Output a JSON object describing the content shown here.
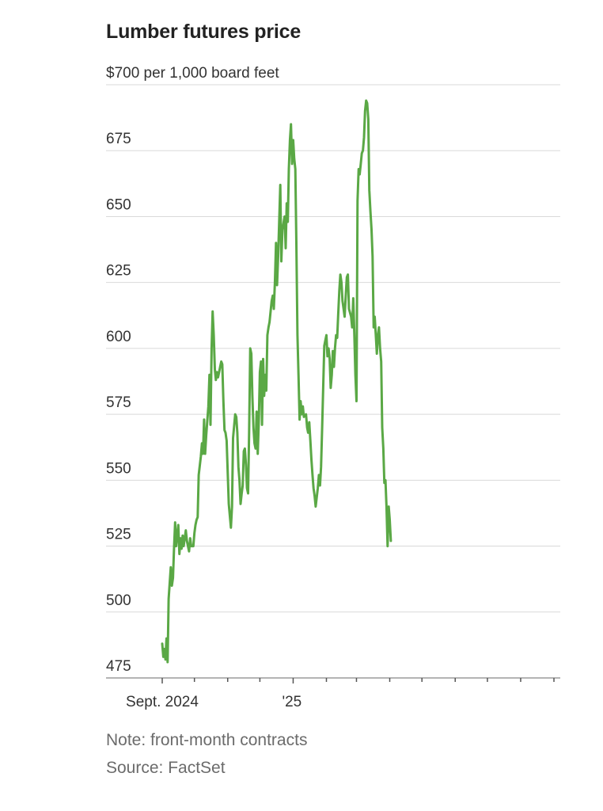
{
  "header": {
    "title": "Lumber futures price"
  },
  "footer": {
    "note": "Note: front-month contracts",
    "source": "Source: FactSet"
  },
  "colors": {
    "line": "#5aa845",
    "grid": "#d9d9d9",
    "axis": "#888888",
    "text": "#333333"
  },
  "chart_data": {
    "type": "line",
    "title": "Lumber futures price",
    "unit_label": "$700 per 1,000 board feet",
    "xlabel": "",
    "ylabel": "",
    "ylim": [
      475,
      700
    ],
    "xlim": [
      "2024-08-26",
      "2025-08-31"
    ],
    "grid": true,
    "y_ticks": [
      {
        "value": 700,
        "label": "$700 per 1,000 board feet"
      },
      {
        "value": 675,
        "label": "675"
      },
      {
        "value": 650,
        "label": "650"
      },
      {
        "value": 625,
        "label": "625"
      },
      {
        "value": 600,
        "label": "600"
      },
      {
        "value": 575,
        "label": "575"
      },
      {
        "value": 550,
        "label": "550"
      },
      {
        "value": 525,
        "label": "525"
      },
      {
        "value": 500,
        "label": "500"
      },
      {
        "value": 475,
        "label": "475"
      }
    ],
    "x_ticks": [
      {
        "x": "2024-09-01",
        "label": "Sept. 2024"
      },
      {
        "x": "2024-10-01",
        "label": ""
      },
      {
        "x": "2024-11-01",
        "label": ""
      },
      {
        "x": "2024-12-01",
        "label": ""
      },
      {
        "x": "2025-01-01",
        "label": "'25"
      },
      {
        "x": "2025-02-01",
        "label": ""
      },
      {
        "x": "2025-03-01",
        "label": ""
      },
      {
        "x": "2025-04-01",
        "label": ""
      },
      {
        "x": "2025-05-01",
        "label": ""
      },
      {
        "x": "2025-06-01",
        "label": ""
      },
      {
        "x": "2025-07-01",
        "label": ""
      },
      {
        "x": "2025-08-01",
        "label": ""
      },
      {
        "x": "2025-09-01",
        "label": ""
      }
    ],
    "series": [
      {
        "color": "#5aa845",
        "points": [
          [
            "2024-09-01",
            488
          ],
          [
            "2024-09-02",
            483
          ],
          [
            "2024-09-03",
            486
          ],
          [
            "2024-09-04",
            482
          ],
          [
            "2024-09-05",
            490
          ],
          [
            "2024-09-06",
            481
          ],
          [
            "2024-09-07",
            505
          ],
          [
            "2024-09-09",
            517
          ],
          [
            "2024-09-10",
            510
          ],
          [
            "2024-09-11",
            513
          ],
          [
            "2024-09-12",
            524
          ],
          [
            "2024-09-13",
            534
          ],
          [
            "2024-09-14",
            525
          ],
          [
            "2024-09-16",
            533
          ],
          [
            "2024-09-17",
            522
          ],
          [
            "2024-09-18",
            528
          ],
          [
            "2024-09-19",
            524
          ],
          [
            "2024-09-20",
            529
          ],
          [
            "2024-09-21",
            525
          ],
          [
            "2024-09-23",
            531
          ],
          [
            "2024-09-24",
            527
          ],
          [
            "2024-09-26",
            523
          ],
          [
            "2024-09-27",
            528
          ],
          [
            "2024-09-28",
            525
          ],
          [
            "2024-09-30",
            525
          ],
          [
            "2024-10-01",
            530
          ],
          [
            "2024-10-02",
            533
          ],
          [
            "2024-10-03",
            535
          ],
          [
            "2024-10-04",
            536
          ],
          [
            "2024-10-05",
            552
          ],
          [
            "2024-10-07",
            559
          ],
          [
            "2024-10-08",
            564
          ],
          [
            "2024-10-09",
            560
          ],
          [
            "2024-10-10",
            573
          ],
          [
            "2024-10-11",
            560
          ],
          [
            "2024-10-12",
            567
          ],
          [
            "2024-10-14",
            578
          ],
          [
            "2024-10-15",
            590
          ],
          [
            "2024-10-16",
            571
          ],
          [
            "2024-10-17",
            600
          ],
          [
            "2024-10-18",
            614
          ],
          [
            "2024-10-19",
            605
          ],
          [
            "2024-10-20",
            592
          ],
          [
            "2024-10-21",
            588
          ],
          [
            "2024-10-22",
            591
          ],
          [
            "2024-10-23",
            589
          ],
          [
            "2024-10-24",
            591
          ],
          [
            "2024-10-25",
            593
          ],
          [
            "2024-10-26",
            595
          ],
          [
            "2024-10-27",
            594
          ],
          [
            "2024-10-28",
            580
          ],
          [
            "2024-10-29",
            569
          ],
          [
            "2024-10-30",
            568
          ],
          [
            "2024-10-31",
            565
          ],
          [
            "2024-11-02",
            541
          ],
          [
            "2024-11-04",
            532
          ],
          [
            "2024-11-05",
            540
          ],
          [
            "2024-11-06",
            566
          ],
          [
            "2024-11-08",
            575
          ],
          [
            "2024-11-09",
            574
          ],
          [
            "2024-11-10",
            568
          ],
          [
            "2024-11-11",
            555
          ],
          [
            "2024-11-12",
            550
          ],
          [
            "2024-11-13",
            541
          ],
          [
            "2024-11-14",
            545
          ],
          [
            "2024-11-15",
            548
          ],
          [
            "2024-11-16",
            561
          ],
          [
            "2024-11-17",
            562
          ],
          [
            "2024-11-18",
            556
          ],
          [
            "2024-11-19",
            547
          ],
          [
            "2024-11-20",
            545
          ],
          [
            "2024-11-21",
            568
          ],
          [
            "2024-11-22",
            600
          ],
          [
            "2024-11-23",
            598
          ],
          [
            "2024-11-24",
            582
          ],
          [
            "2024-11-25",
            570
          ],
          [
            "2024-11-26",
            564
          ],
          [
            "2024-11-27",
            562
          ],
          [
            "2024-11-28",
            576
          ],
          [
            "2024-11-29",
            560
          ],
          [
            "2024-11-30",
            573
          ],
          [
            "2024-12-01",
            591
          ],
          [
            "2024-12-02",
            595
          ],
          [
            "2024-12-03",
            571
          ],
          [
            "2024-12-04",
            596
          ],
          [
            "2024-12-05",
            582
          ],
          [
            "2024-12-06",
            590
          ],
          [
            "2024-12-07",
            584
          ],
          [
            "2024-12-08",
            605
          ],
          [
            "2024-12-09",
            608
          ],
          [
            "2024-12-10",
            610
          ],
          [
            "2024-12-12",
            618
          ],
          [
            "2024-12-13",
            620
          ],
          [
            "2024-12-14",
            615
          ],
          [
            "2024-12-15",
            625
          ],
          [
            "2024-12-16",
            640
          ],
          [
            "2024-12-17",
            624
          ],
          [
            "2024-12-18",
            635
          ],
          [
            "2024-12-19",
            648
          ],
          [
            "2024-12-20",
            662
          ],
          [
            "2024-12-21",
            633
          ],
          [
            "2024-12-22",
            645
          ],
          [
            "2024-12-24",
            650
          ],
          [
            "2024-12-25",
            638
          ],
          [
            "2024-12-26",
            655
          ],
          [
            "2024-12-27",
            648
          ],
          [
            "2024-12-28",
            668
          ],
          [
            "2024-12-29",
            679
          ],
          [
            "2024-12-30",
            685
          ],
          [
            "2024-12-31",
            670
          ],
          [
            "2025-01-01",
            679
          ],
          [
            "2025-01-02",
            672
          ],
          [
            "2025-01-03",
            668
          ],
          [
            "2025-01-04",
            640
          ],
          [
            "2025-01-05",
            605
          ],
          [
            "2025-01-06",
            590
          ],
          [
            "2025-01-07",
            573
          ],
          [
            "2025-01-08",
            580
          ],
          [
            "2025-01-09",
            575
          ],
          [
            "2025-01-10",
            578
          ],
          [
            "2025-01-11",
            574
          ],
          [
            "2025-01-13",
            575
          ],
          [
            "2025-01-14",
            570
          ],
          [
            "2025-01-15",
            568
          ],
          [
            "2025-01-16",
            572
          ],
          [
            "2025-01-17",
            565
          ],
          [
            "2025-01-18",
            558
          ],
          [
            "2025-01-19",
            552
          ],
          [
            "2025-01-20",
            547
          ],
          [
            "2025-01-21",
            544
          ],
          [
            "2025-01-22",
            540
          ],
          [
            "2025-01-24",
            547
          ],
          [
            "2025-01-25",
            552
          ],
          [
            "2025-01-26",
            548
          ],
          [
            "2025-01-27",
            555
          ],
          [
            "2025-01-28",
            570
          ],
          [
            "2025-01-29",
            585
          ],
          [
            "2025-01-30",
            601
          ],
          [
            "2025-01-31",
            603
          ],
          [
            "2025-02-01",
            605
          ],
          [
            "2025-02-02",
            597
          ],
          [
            "2025-02-03",
            600
          ],
          [
            "2025-02-04",
            596
          ],
          [
            "2025-02-05",
            585
          ],
          [
            "2025-02-06",
            590
          ],
          [
            "2025-02-07",
            599
          ],
          [
            "2025-02-08",
            593
          ],
          [
            "2025-02-09",
            600
          ],
          [
            "2025-02-10",
            605
          ],
          [
            "2025-02-11",
            604
          ],
          [
            "2025-02-12",
            613
          ],
          [
            "2025-02-13",
            622
          ],
          [
            "2025-02-14",
            628
          ],
          [
            "2025-02-15",
            625
          ],
          [
            "2025-02-16",
            618
          ],
          [
            "2025-02-17",
            615
          ],
          [
            "2025-02-18",
            612
          ],
          [
            "2025-02-19",
            620
          ],
          [
            "2025-02-20",
            627
          ],
          [
            "2025-02-21",
            628
          ],
          [
            "2025-02-22",
            615
          ],
          [
            "2025-02-24",
            612
          ],
          [
            "2025-02-25",
            608
          ],
          [
            "2025-02-26",
            619
          ],
          [
            "2025-02-27",
            605
          ],
          [
            "2025-02-28",
            590
          ],
          [
            "2025-03-01",
            580
          ],
          [
            "2025-03-02",
            656
          ],
          [
            "2025-03-03",
            668
          ],
          [
            "2025-03-04",
            666
          ],
          [
            "2025-03-05",
            670
          ],
          [
            "2025-03-06",
            674
          ],
          [
            "2025-03-07",
            675
          ],
          [
            "2025-03-08",
            680
          ],
          [
            "2025-03-09",
            690
          ],
          [
            "2025-03-10",
            694
          ],
          [
            "2025-03-11",
            693
          ],
          [
            "2025-03-12",
            687
          ],
          [
            "2025-03-13",
            660
          ],
          [
            "2025-03-14",
            652
          ],
          [
            "2025-03-15",
            645
          ],
          [
            "2025-03-16",
            635
          ],
          [
            "2025-03-17",
            608
          ],
          [
            "2025-03-18",
            612
          ],
          [
            "2025-03-19",
            605
          ],
          [
            "2025-03-20",
            598
          ],
          [
            "2025-03-21",
            605
          ],
          [
            "2025-03-22",
            608
          ],
          [
            "2025-03-23",
            600
          ],
          [
            "2025-03-24",
            595
          ],
          [
            "2025-03-25",
            570
          ],
          [
            "2025-03-26",
            562
          ],
          [
            "2025-03-27",
            549
          ],
          [
            "2025-03-28",
            550
          ],
          [
            "2025-03-29",
            540
          ],
          [
            "2025-03-30",
            525
          ],
          [
            "2025-03-31",
            540
          ],
          [
            "2025-04-01",
            535
          ],
          [
            "2025-04-02",
            527
          ]
        ]
      }
    ]
  }
}
